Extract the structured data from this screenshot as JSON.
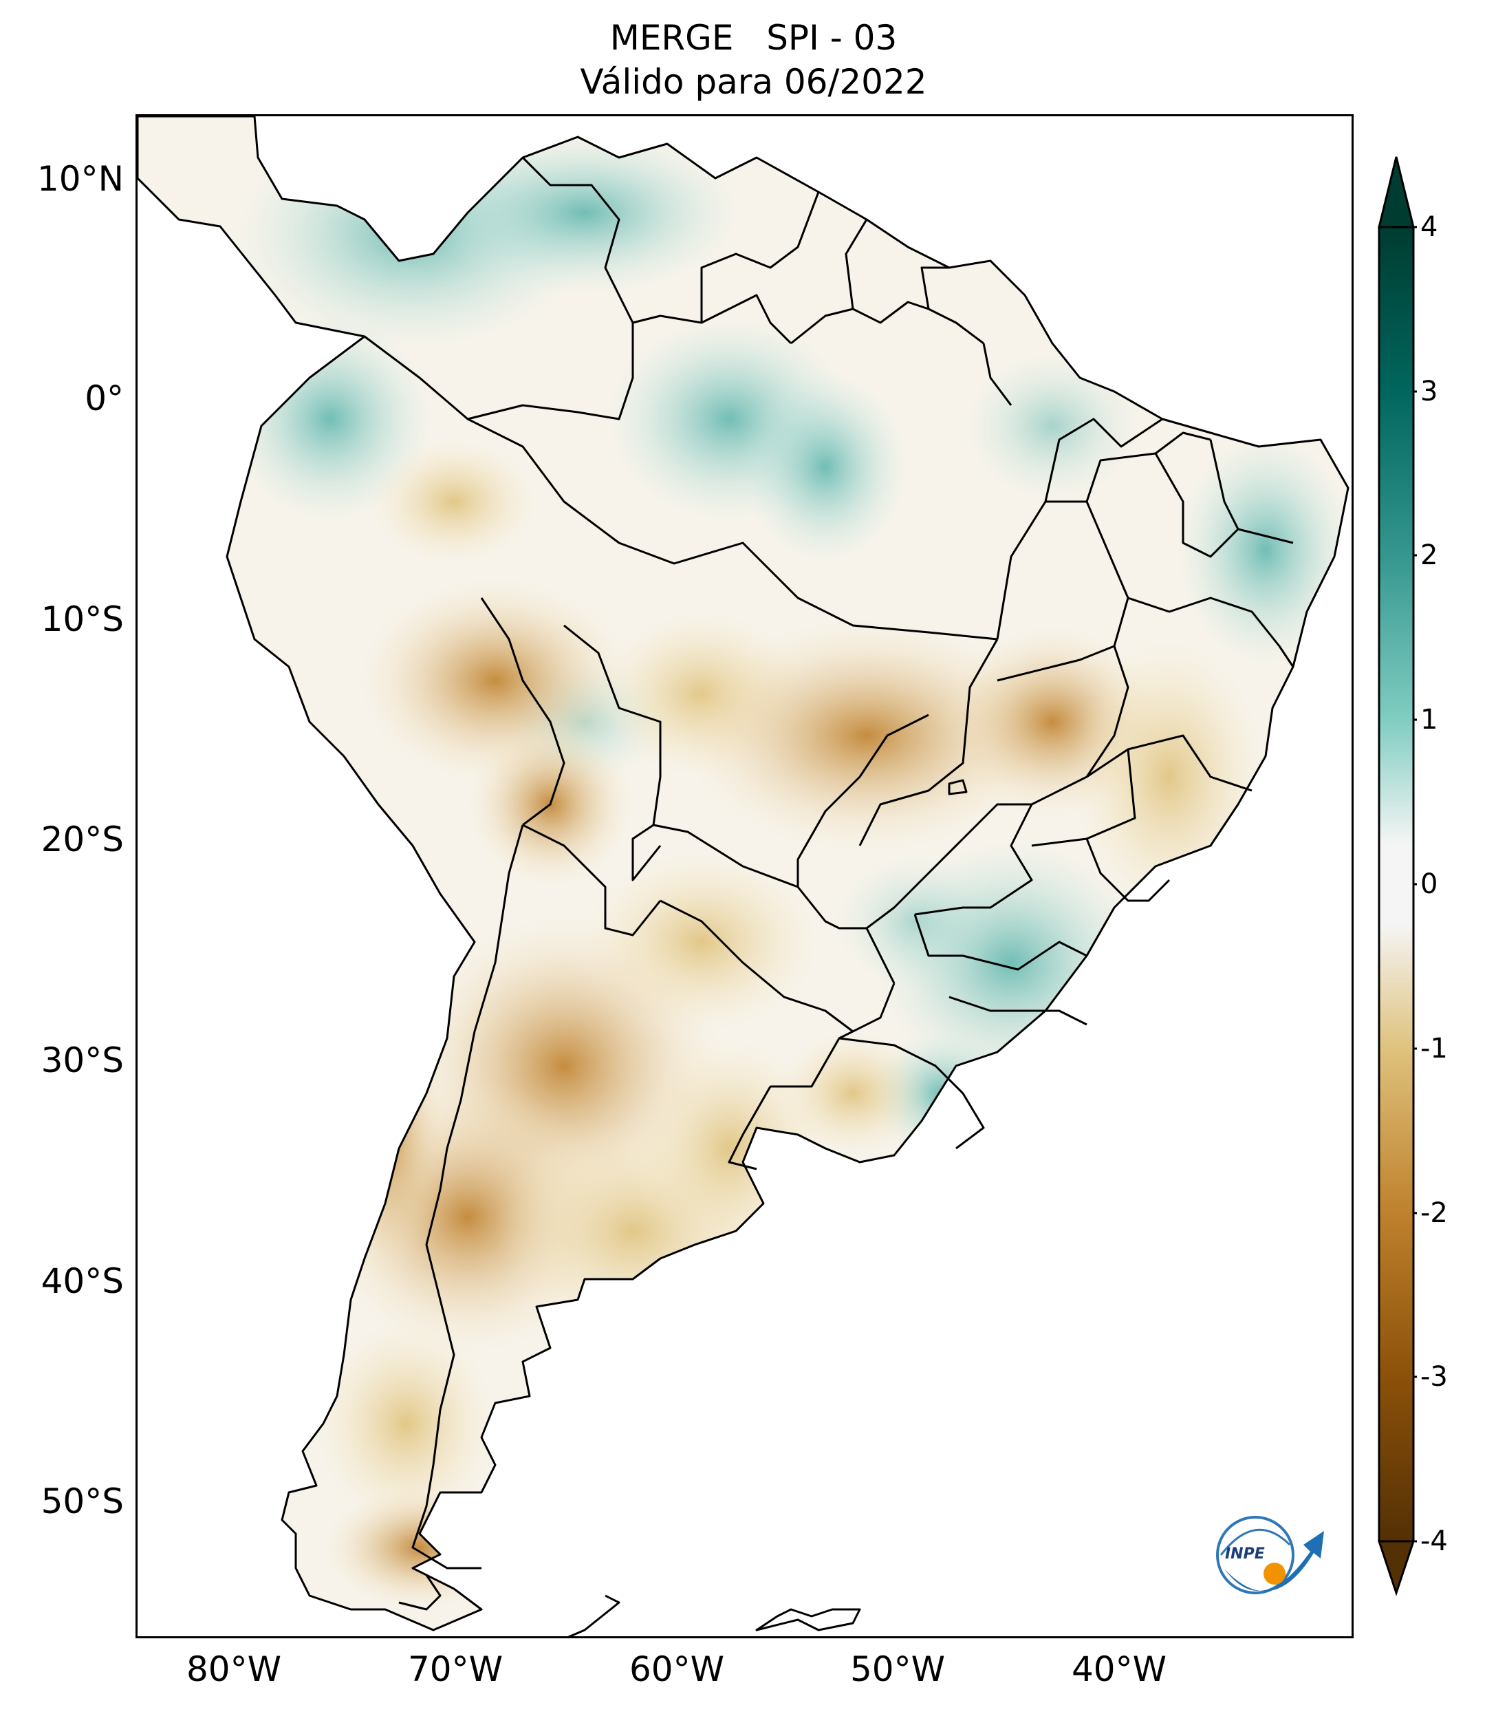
{
  "title": {
    "line1": "MERGE   SPI - 03",
    "line2": "Válido para 06/2022"
  },
  "axes": {
    "lat_ticks": [
      "10°N",
      "0°",
      "10°S",
      "20°S",
      "30°S",
      "40°S",
      "50°S"
    ],
    "lon_ticks": [
      "80°W",
      "70°W",
      "60°W",
      "50°W",
      "40°W"
    ],
    "lat_range": [
      -56,
      13
    ],
    "lon_range": [
      -85,
      -30
    ]
  },
  "colorbar": {
    "ticks": [
      "4",
      "3",
      "2",
      "1",
      "0",
      "-1",
      "-2",
      "-3",
      "-4"
    ],
    "range": [
      -4,
      4
    ],
    "colormap": "BrBG",
    "colors": {
      "min": "#543005",
      "dry": "#bf812d",
      "neutral": "#ffffff",
      "wet": "#35978f",
      "max": "#003c30"
    }
  },
  "map": {
    "region": "South America",
    "icons": [
      "inpe-logo"
    ]
  },
  "logo": {
    "text": "INPE"
  }
}
